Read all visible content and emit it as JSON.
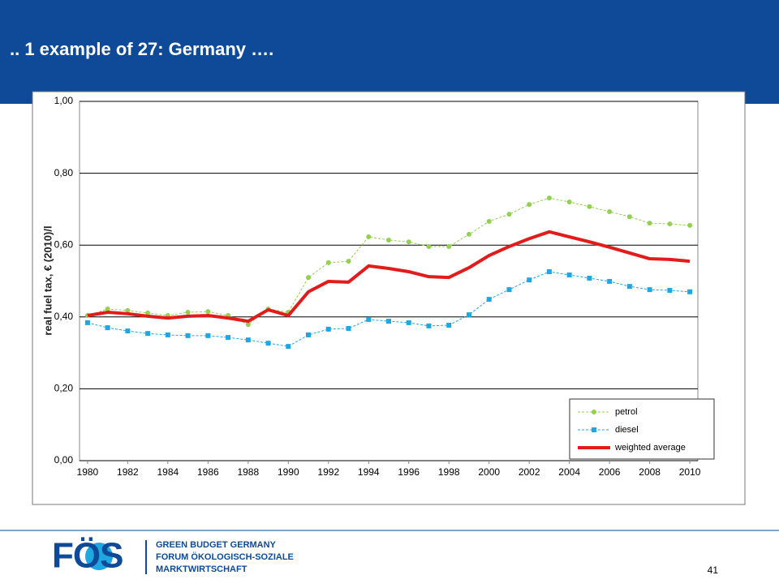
{
  "chart_data": {
    "type": "line",
    "title": ".. 1 example of 27: Germany ….",
    "ylabel": "real fuel tax, € (2010)/l",
    "x": [
      1980,
      1981,
      1982,
      1983,
      1984,
      1985,
      1986,
      1987,
      1988,
      1989,
      1990,
      1991,
      1992,
      1993,
      1994,
      1995,
      1996,
      1997,
      1998,
      1999,
      2000,
      2001,
      2002,
      2003,
      2004,
      2005,
      2006,
      2007,
      2008,
      2009,
      2010
    ],
    "series": [
      {
        "name": "petrol",
        "color": "#92d050",
        "marker": "circle",
        "dashed": true,
        "values": [
          0.404,
          0.422,
          0.418,
          0.411,
          0.404,
          0.413,
          0.415,
          0.404,
          0.379,
          0.422,
          0.413,
          0.51,
          0.551,
          0.555,
          0.623,
          0.614,
          0.609,
          0.596,
          0.596,
          0.63,
          0.666,
          0.686,
          0.713,
          0.731,
          0.72,
          0.707,
          0.693,
          0.679,
          0.661,
          0.659,
          0.655
        ]
      },
      {
        "name": "diesel",
        "color": "#1fa7e1",
        "marker": "square",
        "dashed": true,
        "values": [
          0.384,
          0.37,
          0.361,
          0.354,
          0.35,
          0.348,
          0.348,
          0.343,
          0.336,
          0.327,
          0.318,
          0.35,
          0.366,
          0.368,
          0.393,
          0.388,
          0.384,
          0.375,
          0.377,
          0.406,
          0.449,
          0.476,
          0.503,
          0.526,
          0.517,
          0.508,
          0.499,
          0.485,
          0.476,
          0.474,
          0.47
        ]
      },
      {
        "name": "weighted average",
        "color": "#e31b1b",
        "marker": "none",
        "dashed": false,
        "values": [
          0.404,
          0.413,
          0.409,
          0.402,
          0.397,
          0.402,
          0.404,
          0.397,
          0.388,
          0.42,
          0.404,
          0.47,
          0.499,
          0.497,
          0.542,
          0.535,
          0.526,
          0.512,
          0.51,
          0.537,
          0.571,
          0.596,
          0.618,
          0.637,
          0.623,
          0.609,
          0.594,
          0.578,
          0.562,
          0.56,
          0.555
        ]
      }
    ],
    "xlim": [
      1979.6,
      2010.4
    ],
    "xticks": [
      1980,
      1982,
      1984,
      1986,
      1988,
      1990,
      1992,
      1994,
      1996,
      1998,
      2000,
      2002,
      2004,
      2006,
      2008,
      2010
    ],
    "ylim": [
      0,
      1
    ],
    "yticks": [
      {
        "value": 0,
        "label": "0,00"
      },
      {
        "value": 0.2,
        "label": "0,20"
      },
      {
        "value": 0.4,
        "label": "0,40"
      },
      {
        "value": 0.6,
        "label": "0,60"
      },
      {
        "value": 0.8,
        "label": "0,80"
      },
      {
        "value": 1,
        "label": "1,00"
      }
    ],
    "grid": true,
    "legend": "lower right"
  },
  "footer": {
    "logo": "FÖS",
    "org": [
      "GREEN BUDGET GERMANY",
      "FORUM ÖKOLOGISCH-SOZIALE",
      "MARKTWIRTSCHAFT"
    ],
    "page": "41"
  }
}
